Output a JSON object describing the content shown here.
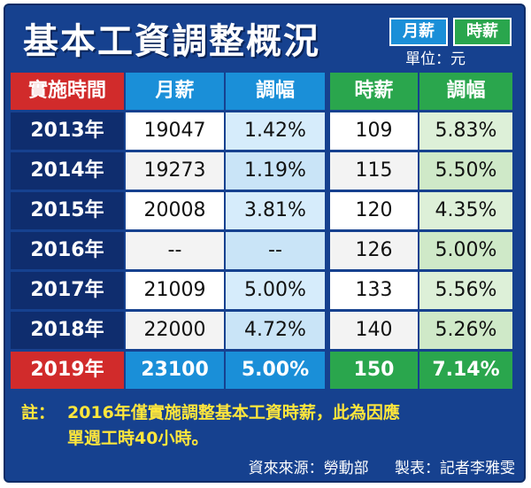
{
  "title": "基本工資調整概況",
  "legend": {
    "month": "月薪",
    "hour": "時薪"
  },
  "unit": "單位：元",
  "columns": [
    "實施時間",
    "月薪",
    "調幅",
    "時薪",
    "調幅"
  ],
  "rows": [
    [
      "2013年",
      "19047",
      "1.42%",
      "109",
      "5.83%"
    ],
    [
      "2014年",
      "19273",
      "1.19%",
      "115",
      "5.50%"
    ],
    [
      "2015年",
      "20008",
      "3.81%",
      "120",
      "4.35%"
    ],
    [
      "2016年",
      "--",
      "--",
      "126",
      "5.00%"
    ],
    [
      "2017年",
      "21009",
      "5.00%",
      "133",
      "5.56%"
    ],
    [
      "2018年",
      "22000",
      "4.72%",
      "140",
      "5.26%"
    ],
    [
      "2019年",
      "23100",
      "5.00%",
      "150",
      "7.14%"
    ]
  ],
  "note": {
    "label": "註：",
    "line1": "2016年僅實施調整基本工資時薪，此為因應",
    "line2": "單週工時40小時。"
  },
  "source": "資來來源：勞動部",
  "maker": "製表：記者李雅雯",
  "colors": {
    "background": "#16418f",
    "year_cell": "#0f2d6e",
    "highlight_red": "#d12b2b",
    "month_blue": "#1a8fd8",
    "hour_green": "#2aa64d",
    "note_yellow": "#ffe63c"
  }
}
